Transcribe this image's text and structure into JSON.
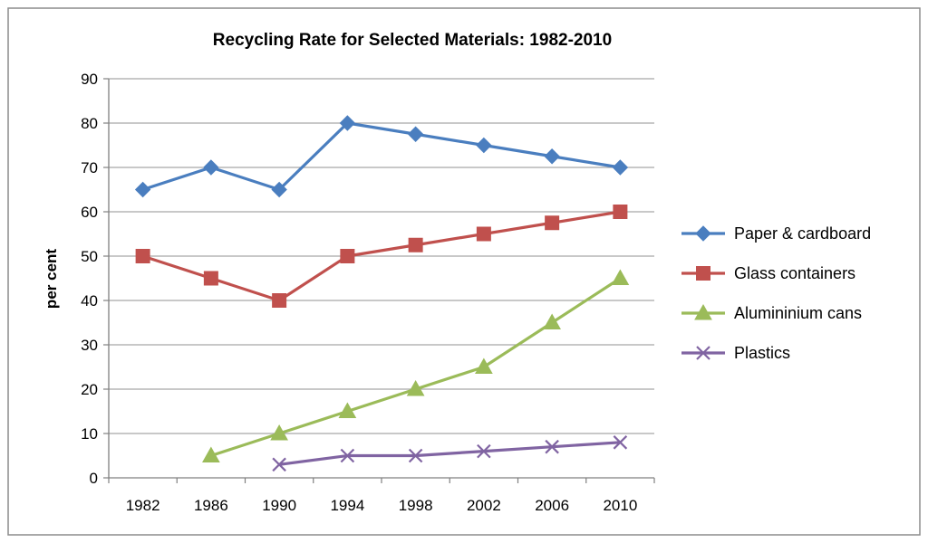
{
  "chart_data": {
    "type": "line",
    "title": "Recycling Rate for Selected Materials: 1982-2010",
    "xlabel": "",
    "ylabel": "per cent",
    "categories": [
      "1982",
      "1986",
      "1990",
      "1994",
      "1998",
      "2002",
      "2006",
      "2010"
    ],
    "ylim": [
      0,
      90
    ],
    "yticks": [
      "0",
      "10",
      "20",
      "30",
      "40",
      "50",
      "60",
      "70",
      "80",
      "90"
    ],
    "grid": true,
    "legend_position": "right",
    "series": [
      {
        "name": "Paper & cardboard",
        "color": "#4a7ebf",
        "marker": "diamond",
        "values": [
          65,
          70,
          65,
          80,
          77.5,
          75,
          72.5,
          70
        ]
      },
      {
        "name": "Glass containers",
        "color": "#c0504d",
        "marker": "square",
        "values": [
          50,
          45,
          40,
          50,
          52.5,
          55,
          57.5,
          60
        ]
      },
      {
        "name": "Alumininium cans",
        "color": "#9bbb59",
        "marker": "triangle",
        "values": [
          null,
          5,
          10,
          15,
          20,
          25,
          35,
          45
        ]
      },
      {
        "name": "Plastics",
        "color": "#8064a2",
        "marker": "x",
        "values": [
          null,
          null,
          3,
          5,
          5,
          6,
          7,
          8
        ]
      }
    ]
  }
}
